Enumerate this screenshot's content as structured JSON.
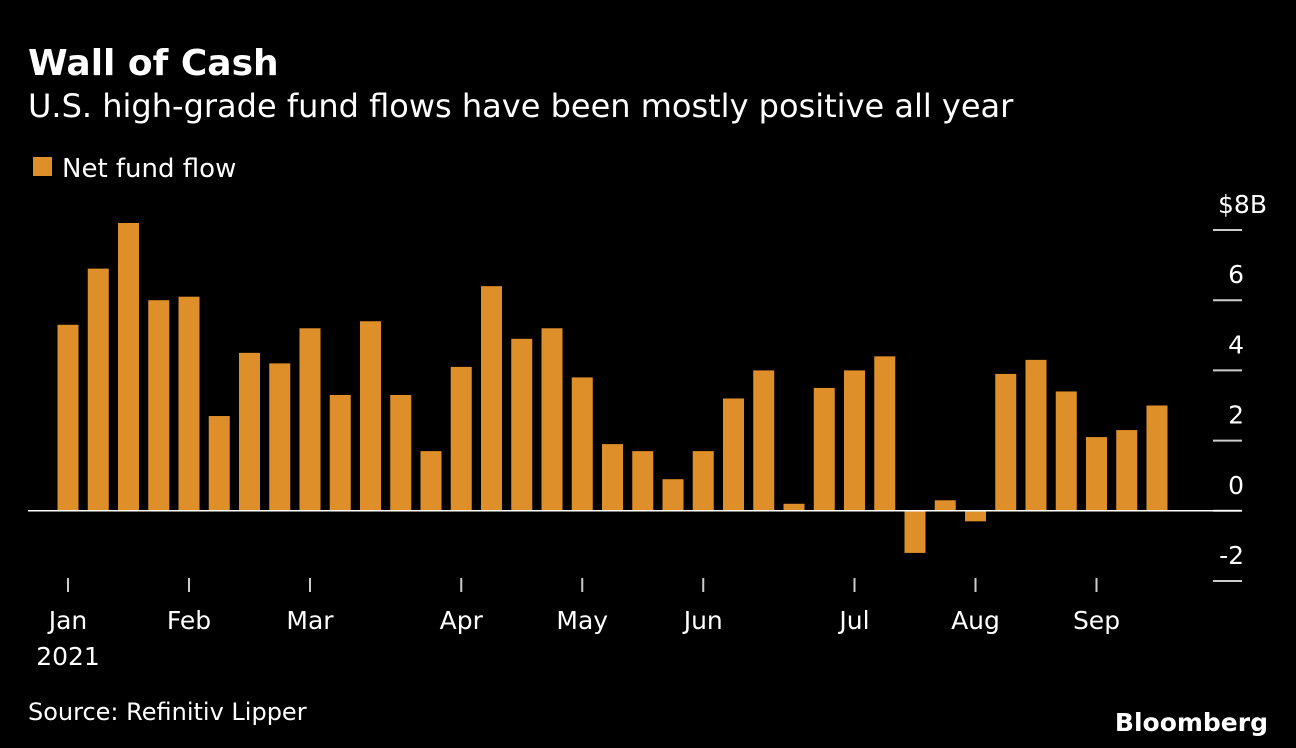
{
  "chart_data": {
    "type": "bar",
    "title": "Wall of Cash",
    "subtitle": "U.S. high-grade fund flows have been mostly positive all year",
    "categories": [
      "Jan",
      null,
      null,
      null,
      "Feb",
      null,
      null,
      null,
      "Mar",
      null,
      null,
      null,
      null,
      "Apr",
      null,
      null,
      null,
      "May",
      null,
      null,
      null,
      "Jun",
      null,
      null,
      null,
      null,
      "Jul",
      null,
      null,
      null,
      "Aug",
      null,
      null,
      null,
      "Sep",
      null,
      null
    ],
    "x_sublabel": "2021",
    "series": [
      {
        "name": "Net fund flow",
        "color": "#df8f2a",
        "values": [
          5.3,
          6.9,
          8.2,
          6.0,
          6.1,
          2.7,
          4.5,
          4.2,
          5.2,
          3.3,
          5.4,
          3.3,
          1.7,
          4.1,
          6.4,
          4.9,
          5.2,
          3.8,
          1.9,
          1.7,
          0.9,
          1.7,
          3.2,
          4.0,
          0.2,
          3.5,
          4.0,
          4.4,
          -1.2,
          0.3,
          -0.3,
          3.9,
          4.3,
          3.4,
          2.1,
          2.3,
          3.0
        ]
      }
    ],
    "ylim": [
      -2,
      8
    ],
    "yticks": [
      -2,
      0,
      2,
      4,
      6,
      {
        "value": 8,
        "label": "$8B"
      }
    ],
    "source": "Source: Refinitiv Lipper",
    "brand": "Bloomberg"
  }
}
